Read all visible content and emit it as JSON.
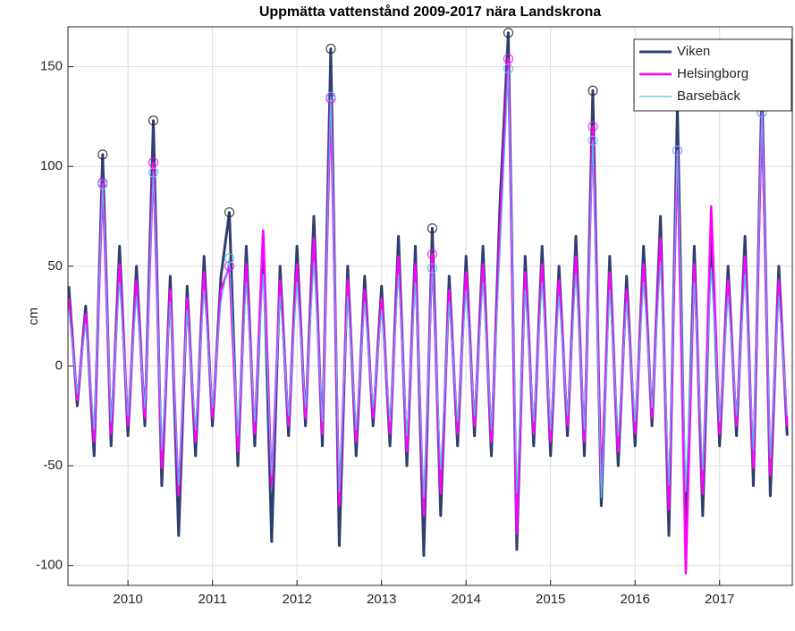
{
  "chart_data": {
    "type": "line",
    "title": "Uppmätta vattenstånd 2009-2017 nära Landskrona",
    "y_label": "cm",
    "x": [
      2009.3,
      2009.4,
      2009.5,
      2009.6,
      2009.7,
      2009.8,
      2009.9,
      2010.0,
      2010.1,
      2010.2,
      2010.3,
      2010.4,
      2010.5,
      2010.6,
      2010.7,
      2010.8,
      2010.9,
      2011.0,
      2011.1,
      2011.2,
      2011.3,
      2011.4,
      2011.5,
      2011.6,
      2011.7,
      2011.8,
      2011.9,
      2012.0,
      2012.1,
      2012.2,
      2012.3,
      2012.4,
      2012.5,
      2012.6,
      2012.7,
      2012.8,
      2012.9,
      2013.0,
      2013.1,
      2013.2,
      2013.3,
      2013.4,
      2013.5,
      2013.6,
      2013.7,
      2013.8,
      2013.9,
      2014.0,
      2014.1,
      2014.2,
      2014.3,
      2014.4,
      2014.5,
      2014.6,
      2014.7,
      2014.8,
      2014.9,
      2015.0,
      2015.1,
      2015.2,
      2015.3,
      2015.4,
      2015.5,
      2015.6,
      2015.7,
      2015.8,
      2015.9,
      2016.0,
      2016.1,
      2016.2,
      2016.3,
      2016.4,
      2016.5,
      2016.6,
      2016.7,
      2016.8,
      2016.9,
      2017.0,
      2017.1,
      2017.2,
      2017.3,
      2017.4,
      2017.5,
      2017.6,
      2017.7,
      2017.8
    ],
    "series": [
      {
        "name": "Viken",
        "color": "#2e3f6e",
        "width": 3,
        "marker_color": "#222222",
        "values": [
          40,
          -20,
          30,
          -45,
          106,
          -40,
          60,
          -35,
          50,
          -30,
          123,
          -60,
          45,
          -85,
          40,
          -45,
          55,
          -30,
          45,
          77,
          -50,
          60,
          -40,
          65,
          -88,
          50,
          -35,
          60,
          -30,
          75,
          -40,
          159,
          -90,
          50,
          -45,
          45,
          -30,
          40,
          -40,
          65,
          -50,
          60,
          -95,
          69,
          -75,
          45,
          -40,
          55,
          -35,
          60,
          -45,
          80,
          167,
          -92,
          55,
          -40,
          60,
          -45,
          50,
          -35,
          65,
          -45,
          138,
          -70,
          55,
          -50,
          45,
          -40,
          60,
          -30,
          75,
          -85,
          130,
          -90,
          60,
          -75,
          70,
          -40,
          50,
          -35,
          65,
          -60,
          140,
          -65,
          50,
          -35
        ]
      },
      {
        "name": "Helsingborg",
        "color": "#ff00ff",
        "width": 2.5,
        "marker_color": "#ff00ff",
        "values": [
          34,
          -17,
          26,
          -38,
          92,
          -34,
          51,
          -30,
          43,
          -26,
          102,
          -51,
          38,
          -65,
          34,
          -38,
          47,
          -26,
          38,
          50,
          -43,
          51,
          -34,
          68,
          -60,
          43,
          -30,
          51,
          -26,
          64,
          -34,
          134,
          -70,
          43,
          -38,
          38,
          -26,
          34,
          -34,
          55,
          -43,
          51,
          -75,
          56,
          -64,
          38,
          -34,
          47,
          -30,
          51,
          -38,
          68,
          154,
          -84,
          47,
          -34,
          51,
          -38,
          43,
          -30,
          55,
          -38,
          120,
          -60,
          47,
          -43,
          38,
          -34,
          51,
          -26,
          64,
          -72,
          108,
          -104,
          51,
          -64,
          80,
          -34,
          43,
          -30,
          55,
          -51,
          127,
          -55,
          43,
          -30
        ]
      },
      {
        "name": "Barsebäck",
        "color": "#4dbeee",
        "width": 1.2,
        "marker_color": "#4dbeee",
        "values": [
          28,
          -14,
          21,
          -32,
          91,
          -28,
          42,
          -25,
          35,
          -21,
          97,
          -42,
          32,
          -60,
          28,
          -32,
          38,
          -21,
          32,
          54,
          -35,
          42,
          -28,
          46,
          -55,
          35,
          -25,
          42,
          -21,
          52,
          -28,
          135,
          -63,
          35,
          -32,
          32,
          -21,
          28,
          -28,
          46,
          -35,
          42,
          -66,
          49,
          -52,
          32,
          -28,
          38,
          -25,
          42,
          -32,
          56,
          149,
          -64,
          38,
          -28,
          42,
          -32,
          35,
          -25,
          46,
          -32,
          113,
          -66,
          38,
          -35,
          32,
          -28,
          42,
          -21,
          52,
          -60,
          108,
          -63,
          42,
          -52,
          49,
          -28,
          35,
          -25,
          46,
          -42,
          127,
          -46,
          35,
          -25
        ]
      }
    ],
    "circled_indices": [
      4,
      10,
      19,
      31,
      43,
      52,
      62,
      72,
      82
    ],
    "xlim": [
      2009.29,
      2017.86
    ],
    "xticks": [
      2010,
      2011,
      2012,
      2013,
      2014,
      2015,
      2016,
      2017
    ],
    "ylim": [
      -110,
      170
    ],
    "yticks": [
      -100,
      -50,
      0,
      50,
      100,
      150
    ],
    "grid": true,
    "legend": "top-right"
  }
}
